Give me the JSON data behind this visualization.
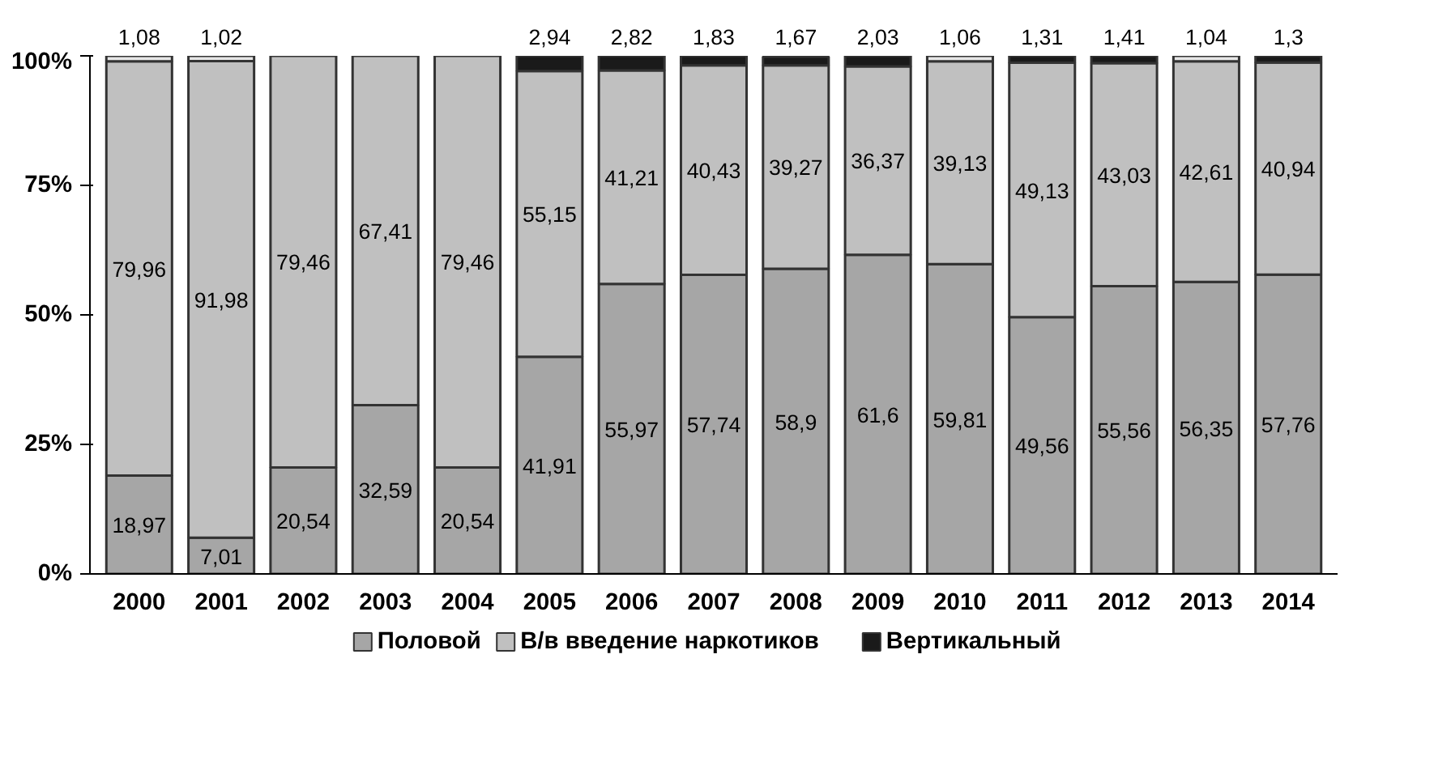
{
  "chart_data": {
    "type": "bar",
    "stacked": true,
    "categories": [
      "2000",
      "2001",
      "2002",
      "2003",
      "2004",
      "2005",
      "2006",
      "2007",
      "2008",
      "2009",
      "2010",
      "2011",
      "2012",
      "2013",
      "2014"
    ],
    "series": [
      {
        "name": "Половой",
        "color": "#a6a6a6",
        "values": [
          18.97,
          7.01,
          20.54,
          32.59,
          20.54,
          41.91,
          55.97,
          57.74,
          58.9,
          61.6,
          59.81,
          49.56,
          55.56,
          56.35,
          57.76
        ],
        "value_labels": [
          "18,97",
          "7,01",
          "20,54",
          "32,59",
          "20,54",
          "41,91",
          "55,97",
          "57,74",
          "58,9",
          "61,6",
          "59,81",
          "49,56",
          "55,56",
          "56,35",
          "57,76"
        ]
      },
      {
        "name": "В/в введение наркотиков",
        "color": "#c0c0c0",
        "values": [
          79.96,
          91.98,
          79.46,
          67.41,
          79.46,
          55.15,
          41.21,
          40.43,
          39.27,
          36.37,
          39.13,
          49.13,
          43.03,
          42.61,
          40.94
        ],
        "value_labels": [
          "79,96",
          "91,98",
          "79,46",
          "67,41",
          "79,46",
          "55,15",
          "41,21",
          "40,43",
          "39,27",
          "36,37",
          "39,13",
          "49,13",
          "43,03",
          "42,61",
          "40,94"
        ]
      },
      {
        "name": "Вертикальный",
        "color": "#1a1a1a",
        "colors": [
          "#e6e6e6",
          "#e6e6e6",
          null,
          null,
          null,
          "#1a1a1a",
          "#1a1a1a",
          "#1a1a1a",
          "#1a1a1a",
          "#1a1a1a",
          "#e6e6e6",
          "#1a1a1a",
          "#1a1a1a",
          "#e6e6e6",
          "#1a1a1a"
        ],
        "values": [
          1.08,
          1.02,
          null,
          null,
          null,
          2.94,
          2.82,
          1.83,
          1.67,
          2.03,
          1.06,
          1.31,
          1.41,
          1.04,
          1.3
        ],
        "value_labels": [
          "1,08",
          "1,02",
          null,
          null,
          null,
          "2,94",
          "2,82",
          "1,83",
          "1,67",
          "2,03",
          "1,06",
          "1,31",
          "1,41",
          "1,04",
          "1,3"
        ]
      }
    ],
    "ylim": [
      0,
      100
    ],
    "yticks": [
      {
        "value": 0,
        "label": "0%"
      },
      {
        "value": 25,
        "label": "25%"
      },
      {
        "value": 50,
        "label": "50%"
      },
      {
        "value": 75,
        "label": "75%"
      },
      {
        "value": 100,
        "label": "100%"
      }
    ],
    "grid": false,
    "legend": "bottom"
  }
}
